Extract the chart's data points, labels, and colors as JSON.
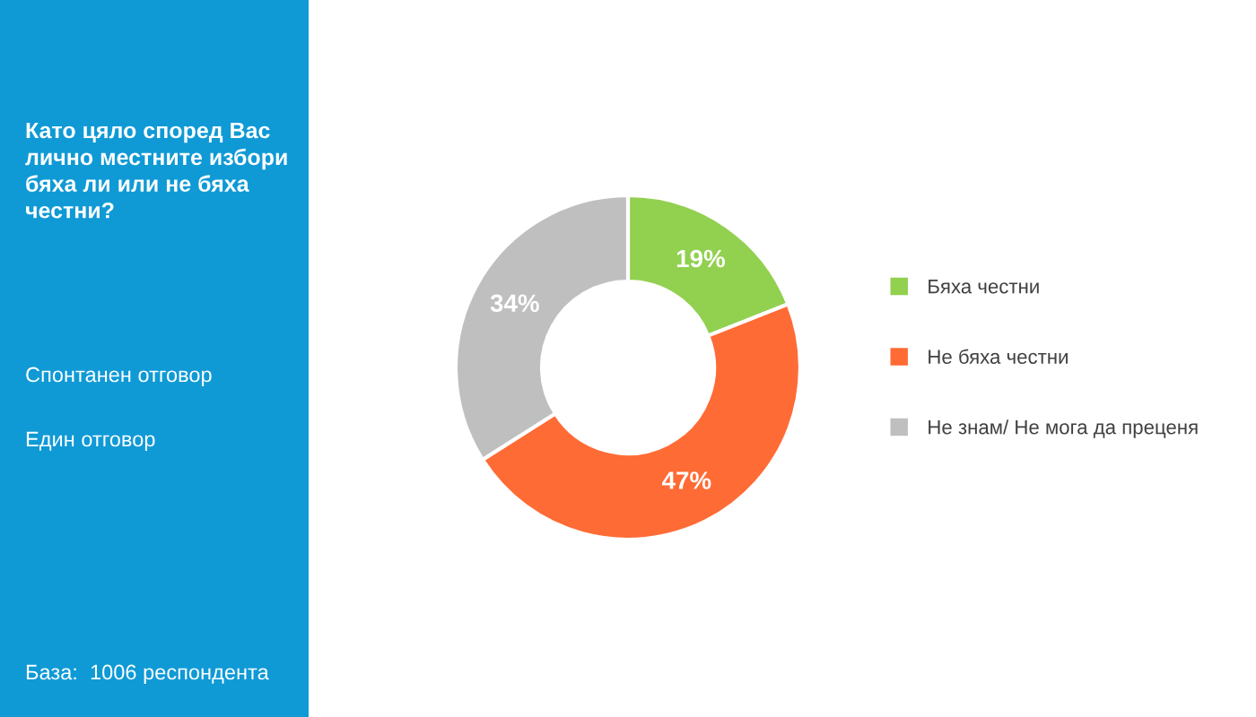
{
  "chart_data": {
    "type": "donut",
    "title": "Като цяло според Вас\nлично местните избори\nбяха ли или не бяха\nчестни?",
    "categories": [
      "Бяха честни",
      "Не бяха честни",
      "Не знам/ Не мога да преценя"
    ],
    "values": [
      19,
      47,
      34
    ],
    "colors": [
      "#92d050",
      "#ff6b35",
      "#bfbfbf"
    ],
    "value_labels": [
      "19%",
      "47%",
      "34%"
    ],
    "legend": "right",
    "annotations": [
      "Спонтанен отговор",
      "Един отговор",
      "База:  1006 респондента"
    ]
  }
}
